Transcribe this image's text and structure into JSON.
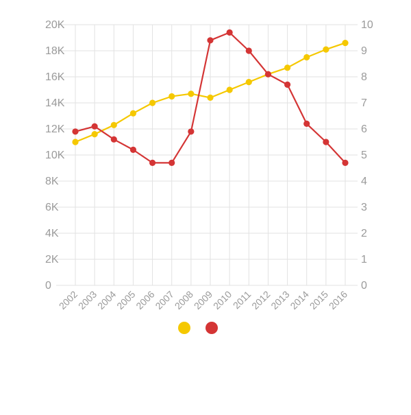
{
  "chart_data": {
    "type": "line",
    "categories": [
      "2002",
      "2003",
      "2004",
      "2005",
      "2006",
      "2007",
      "2008",
      "2009",
      "2010",
      "2011",
      "2012",
      "2013",
      "2014",
      "2015",
      "2016"
    ],
    "series": [
      {
        "axis": "left",
        "color": "#f5c800",
        "values": [
          11000,
          11600,
          12300,
          13200,
          14000,
          14500,
          14700,
          14400,
          15000,
          15600,
          16200,
          16700,
          17500,
          18100,
          18600
        ]
      },
      {
        "axis": "right",
        "color": "#d43535",
        "values": [
          5.9,
          6.1,
          5.6,
          5.2,
          4.7,
          4.7,
          5.9,
          9.4,
          9.7,
          9.0,
          8.1,
          7.7,
          6.2,
          5.5,
          4.7
        ]
      }
    ],
    "y_left": {
      "ylim": [
        0,
        20000
      ],
      "ticks": [
        0,
        2000,
        4000,
        6000,
        8000,
        10000,
        12000,
        14000,
        16000,
        18000,
        20000
      ],
      "tick_labels": [
        "0",
        "2K",
        "4K",
        "6K",
        "8K",
        "10K",
        "12K",
        "14K",
        "16K",
        "18K",
        "20K"
      ]
    },
    "y_right": {
      "ylim": [
        0,
        10
      ],
      "ticks": [
        0,
        1,
        2,
        3,
        4,
        5,
        6,
        7,
        8,
        9,
        10
      ],
      "tick_labels": [
        "0",
        "1",
        "2",
        "3",
        "4",
        "5",
        "6",
        "7",
        "8",
        "9",
        "10"
      ]
    },
    "grid": true,
    "legend": {
      "placement": "bottom-center",
      "colors": [
        "#f5c800",
        "#d43535"
      ]
    },
    "colors": {
      "grid": "#e2e2e2",
      "tick_text": "#9a9a9a"
    }
  }
}
